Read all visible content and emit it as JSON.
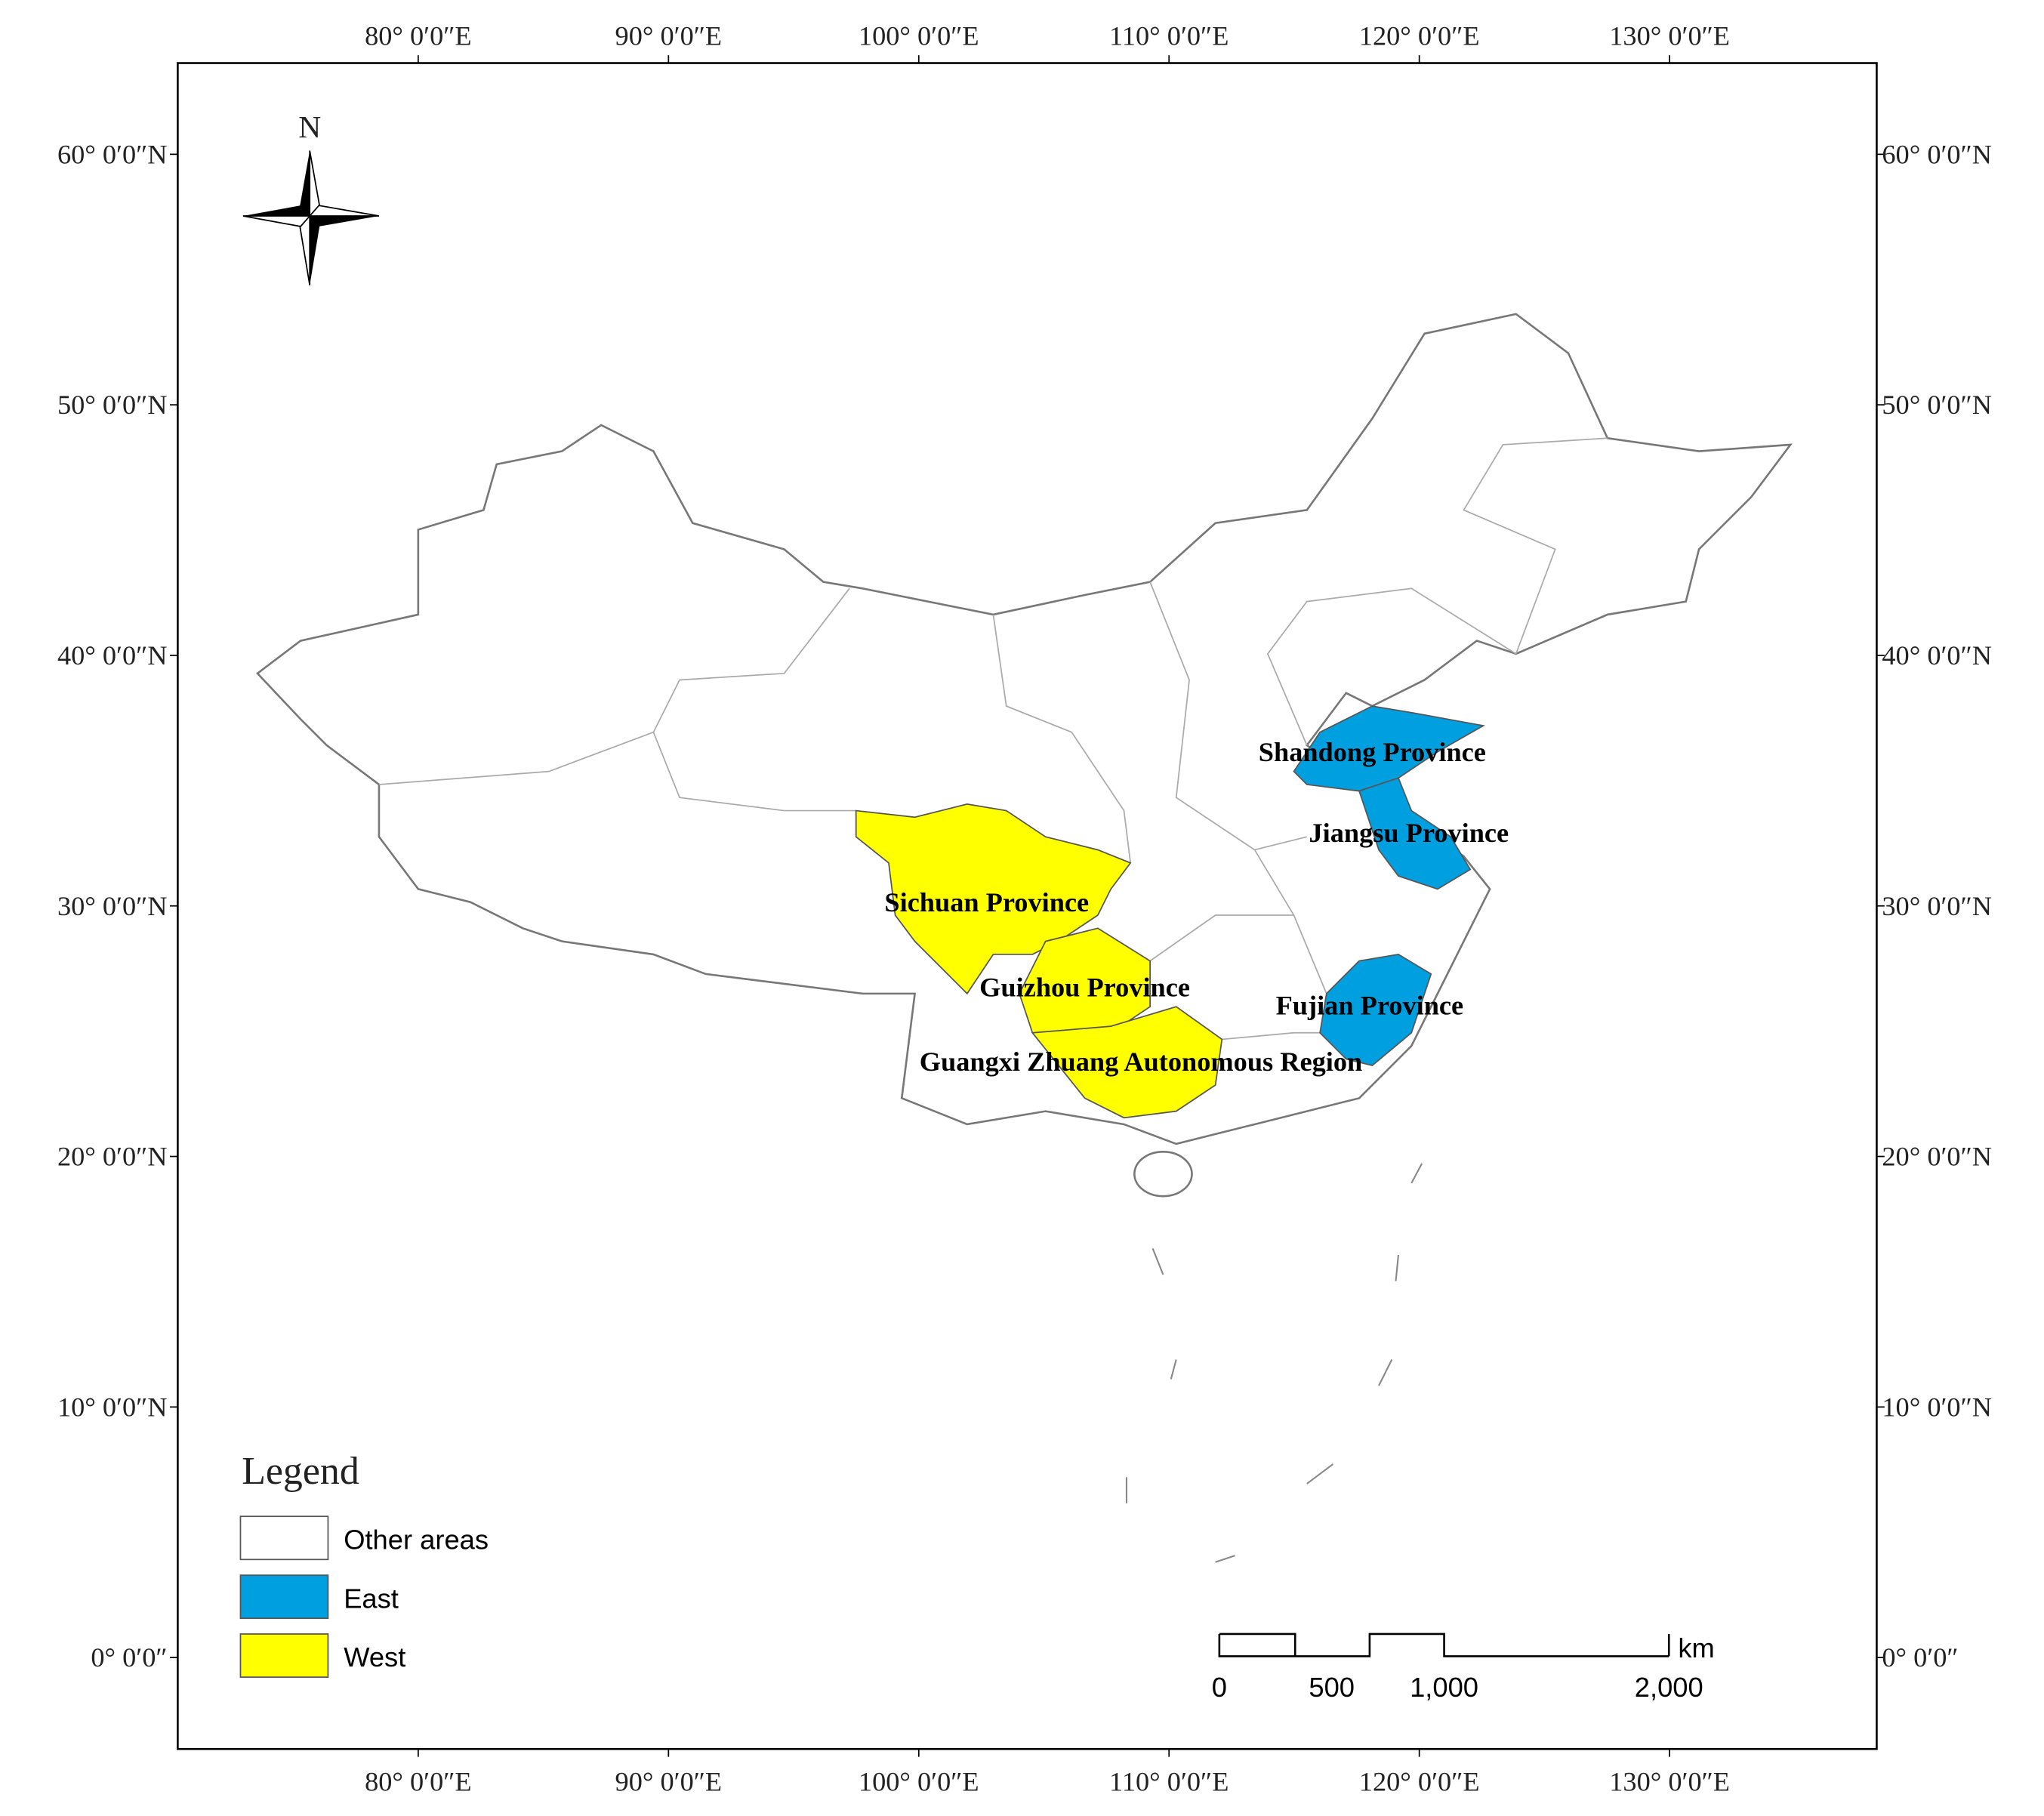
{
  "map": {
    "north_label": "N",
    "longitude_ticks": [
      {
        "value": 80,
        "label": "80°  0′0″E"
      },
      {
        "value": 90,
        "label": "90°  0′0″E"
      },
      {
        "value": 100,
        "label": "100°  0′0″E"
      },
      {
        "value": 110,
        "label": "110°  0′0″E"
      },
      {
        "value": 120,
        "label": "120°  0′0″E"
      },
      {
        "value": 130,
        "label": "130°  0′0″E"
      }
    ],
    "latitude_ticks": [
      {
        "value": 0,
        "label": "0°  0′0″"
      },
      {
        "value": 10,
        "label": "10°  0′0″N"
      },
      {
        "value": 20,
        "label": "20°  0′0″N"
      },
      {
        "value": 30,
        "label": "30°  0′0″N"
      },
      {
        "value": 40,
        "label": "40°  0′0″N"
      },
      {
        "value": 50,
        "label": "50°  0′0″N"
      },
      {
        "value": 60,
        "label": "60°  0′0″N"
      }
    ],
    "legend": {
      "title": "Legend",
      "items": [
        {
          "name": "Other areas",
          "color": "#ffffff",
          "regions": []
        },
        {
          "name": "East",
          "color": "#00a0e0",
          "regions": [
            "Shandong Province",
            "Jiangsu Province",
            "Fujian Province"
          ]
        },
        {
          "name": "West",
          "color": "#ffff00",
          "regions": [
            "Sichuan Province",
            "Guizhou Province",
            "Guangxi Zhuang Autonomous Region"
          ]
        }
      ]
    },
    "scale_bar": {
      "unit": "km",
      "ticks": [
        {
          "value": 0,
          "label": "0"
        },
        {
          "value": 500,
          "label": "500"
        },
        {
          "value": 1000,
          "label": "1,000"
        },
        {
          "value": 2000,
          "label": "2,000"
        }
      ]
    }
  }
}
